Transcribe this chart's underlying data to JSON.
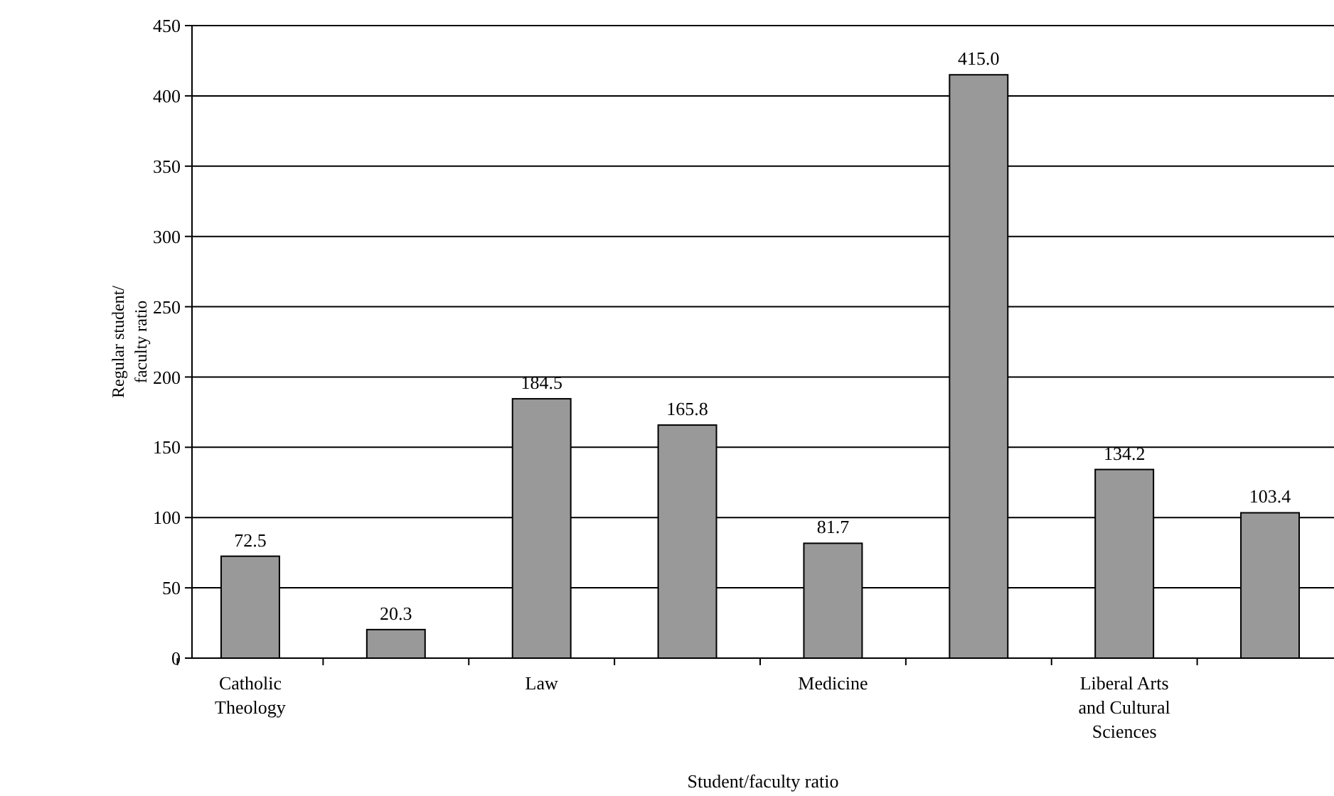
{
  "chart_data": {
    "type": "bar",
    "xlabel": "Student/faculty ratio",
    "ylabel": "Regular student/ faculty ratio",
    "categories": [
      "Catholic Theology",
      null,
      "Law",
      null,
      "Medicine",
      null,
      "Liberal Arts and Cultural Sciences",
      null
    ],
    "values": [
      72.5,
      20.3,
      184.5,
      165.8,
      81.7,
      415.0,
      134.2,
      103.4
    ],
    "value_labels": [
      "72.5",
      "20.3",
      "184.5",
      "165.8",
      "81.7",
      "415.0",
      "134.2",
      "103.4"
    ],
    "color": "#999999",
    "ylim": [
      0,
      450
    ],
    "yticks": [
      0,
      50,
      100,
      150,
      200,
      250,
      300,
      350,
      400,
      450
    ],
    "grid": "y"
  }
}
